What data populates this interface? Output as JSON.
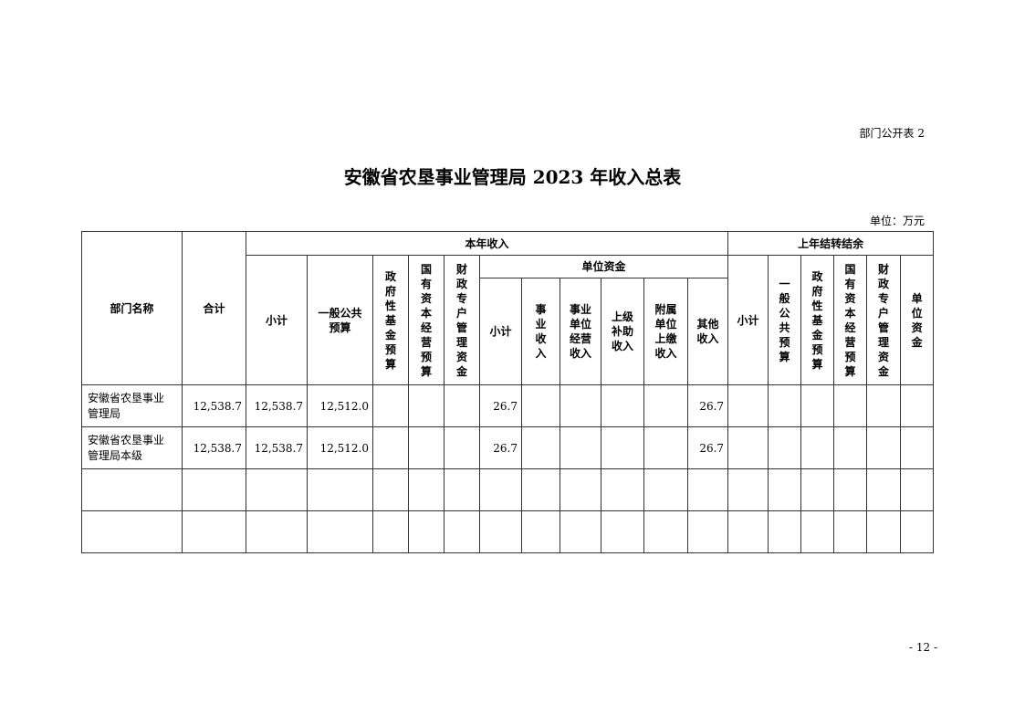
{
  "doc": {
    "tag": "部门公开表 2",
    "title": "安徽省农垦事业管理局 2023 年收入总表",
    "unit": "单位：万元",
    "page_number": "- 12 -"
  },
  "headers": {
    "dept": "部门名称",
    "total": "合计",
    "current": "本年收入",
    "prior": "上年结转结余",
    "cur_subtotal": "小计",
    "cur_general": "一般公共\n预算",
    "cur_gov_fund": "政\n府\n性\n基\n金\n预\n算",
    "cur_state_capital": "国\n有\n资\n本\n经\n营\n预\n算",
    "cur_special": "财\n政\n专\n户\n管\n理\n资\n金",
    "unit_funds": "单位资金",
    "uf_subtotal": "小计",
    "uf_business": "事\n业\n收\n入",
    "uf_operating": "事业\n单位\n经营\n收入",
    "uf_subsidy": "上级\n补助\n收入",
    "uf_affiliated": "附属\n单位\n上缴\n收入",
    "uf_other": "其他\n收入",
    "pr_subtotal": "小计",
    "pr_general": "一\n般\n公\n共\n预\n算",
    "pr_gov_fund": "政\n府\n性\n基\n金\n预\n算",
    "pr_state_capital": "国\n有\n资\n本\n经\n营\n预\n算",
    "pr_special": "财\n政\n专\n户\n管\n理\n资\n金",
    "pr_unit": "单\n位\n资\n金"
  },
  "rows": [
    {
      "name": "安徽省农垦事业\n管理局",
      "total": "12,538.7",
      "cur_subtotal": "12,538.7",
      "cur_general": "12,512.0",
      "uf_subtotal": "26.7",
      "uf_other": "26.7"
    },
    {
      "name": "安徽省农垦事业\n管理局本级",
      "total": "12,538.7",
      "cur_subtotal": "12,538.7",
      "cur_general": "12,512.0",
      "uf_subtotal": "26.7",
      "uf_other": "26.7"
    }
  ]
}
